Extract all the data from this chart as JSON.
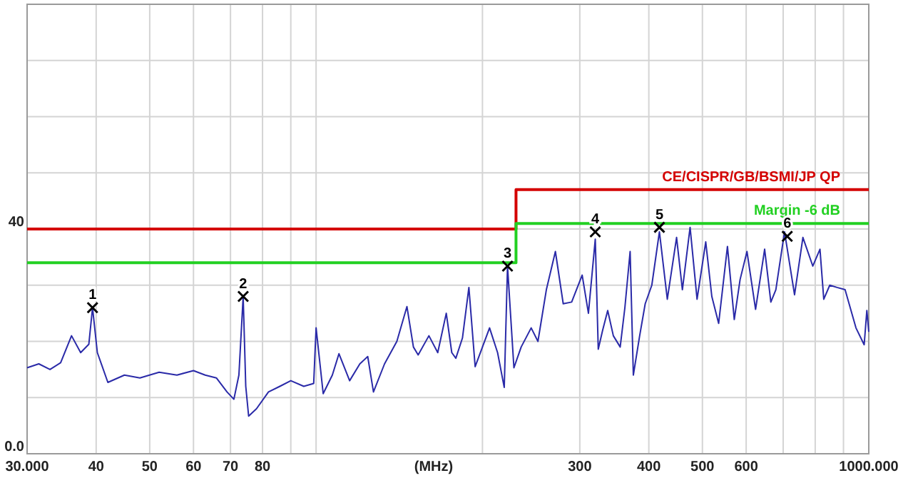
{
  "chart_data": {
    "type": "line",
    "xlabel": "(MHz)",
    "log": "x",
    "grid": true,
    "xlim": [
      30,
      1000
    ],
    "ylim": [
      0,
      80
    ],
    "xticks": [
      {
        "value": 30,
        "label": "30.000"
      },
      40,
      50,
      60,
      70,
      80,
      {
        "value": 90,
        "label": null
      },
      {
        "value": 100,
        "label": null
      },
      {
        "value": 200,
        "label": null
      },
      300,
      400,
      500,
      600,
      {
        "value": 700,
        "label": null
      },
      {
        "value": 800,
        "label": null
      },
      {
        "value": 900,
        "label": null
      },
      {
        "value": 1000,
        "label": "1000.000"
      }
    ],
    "yticks": [
      {
        "value": 0,
        "label": "0.0"
      },
      {
        "value": 10,
        "label": null
      },
      {
        "value": 20,
        "label": null
      },
      {
        "value": 30,
        "label": null
      },
      40,
      {
        "value": 50,
        "label": null
      },
      {
        "value": 60,
        "label": null
      },
      {
        "value": 70,
        "label": null
      },
      {
        "value": 80,
        "label": null
      }
    ],
    "series": [
      {
        "color": "#2a2aa8",
        "x": [
          30,
          31.5,
          33,
          34.5,
          36.1,
          37.5,
          38.8,
          39.4,
          40.2,
          42,
          45,
          48,
          52,
          56,
          60,
          63,
          66,
          69,
          71,
          72.5,
          73.8,
          74.6,
          75.5,
          78,
          82,
          86,
          90,
          95,
          99,
          100,
          103,
          107,
          110,
          115,
          120,
          124,
          127,
          133,
          140,
          146,
          150,
          153,
          160,
          166,
          172,
          176,
          179,
          184,
          189,
          194,
          200,
          206,
          213,
          219,
          222,
          228,
          235,
          245,
          252,
          261,
          271,
          280,
          290,
          303,
          311,
          320,
          324,
          330,
          337,
          345,
          355,
          362,
          370,
          375,
          385,
          394,
          405,
          418,
          432,
          449,
          460,
          475,
          489,
          507,
          520,
          535,
          555,
          571,
          585,
          602,
          624,
          648,
          665,
          679,
          704,
          734,
          760,
          792,
          816,
          829,
          850,
          876,
          906,
          948,
          981,
          992,
          1000
        ],
        "values": [
          15.3,
          16,
          15,
          16.2,
          21,
          18,
          19.5,
          26,
          18,
          12.7,
          14,
          13.5,
          14.5,
          14,
          14.8,
          14,
          13.5,
          11,
          9.7,
          14,
          28,
          12,
          6.7,
          8,
          11,
          12,
          13,
          12,
          12.5,
          22.4,
          10.7,
          14,
          17.8,
          13,
          16,
          17.3,
          11,
          16,
          20,
          26.2,
          19,
          17.6,
          21,
          18,
          25,
          18,
          17,
          20.6,
          29.6,
          15.5,
          19,
          22.4,
          18,
          11.8,
          33.4,
          15.3,
          19,
          22.4,
          20,
          29.2,
          36,
          26.7,
          27,
          31.8,
          25,
          38.2,
          18.6,
          22,
          25.5,
          21,
          19,
          26,
          36,
          14,
          21,
          26.7,
          30,
          39.5,
          27.5,
          38.5,
          29.2,
          40.3,
          27.5,
          37.7,
          28,
          23.2,
          36.9,
          23.9,
          31,
          36,
          25.7,
          36.4,
          27,
          29.2,
          39.5,
          28.3,
          38.5,
          33.4,
          36.4,
          27.5,
          30,
          29.6,
          29.2,
          22.4,
          19.4,
          25.5,
          21.7
        ]
      },
      {
        "type": "step",
        "name": "CE/CISPR/GB/BSMI/JP QP",
        "color": "#d40000",
        "x": [
          30,
          230,
          1000
        ],
        "values": [
          40,
          47,
          47
        ]
      },
      {
        "type": "step",
        "name": "Margin -6 dB",
        "color": "#22d022",
        "x": [
          30,
          230,
          1000
        ],
        "values": [
          34,
          41,
          41
        ]
      },
      {
        "type": "scatter",
        "marker": "cross",
        "color": "#000000",
        "x": [
          39.4,
          73.8,
          222,
          320,
          418,
          712
        ],
        "values": [
          26,
          28,
          33.4,
          39.5,
          40.3,
          38.7
        ]
      }
    ],
    "annotations": [
      {
        "text": "1",
        "x": 39.4,
        "y": 26
      },
      {
        "text": "2",
        "x": 73.8,
        "y": 28
      },
      {
        "text": "3",
        "x": 222,
        "y": 33.4
      },
      {
        "text": "4",
        "x": 320,
        "y": 39.5
      },
      {
        "text": "5",
        "x": 418,
        "y": 40.3
      },
      {
        "text": "6",
        "x": 712,
        "y": 38.7
      }
    ]
  }
}
